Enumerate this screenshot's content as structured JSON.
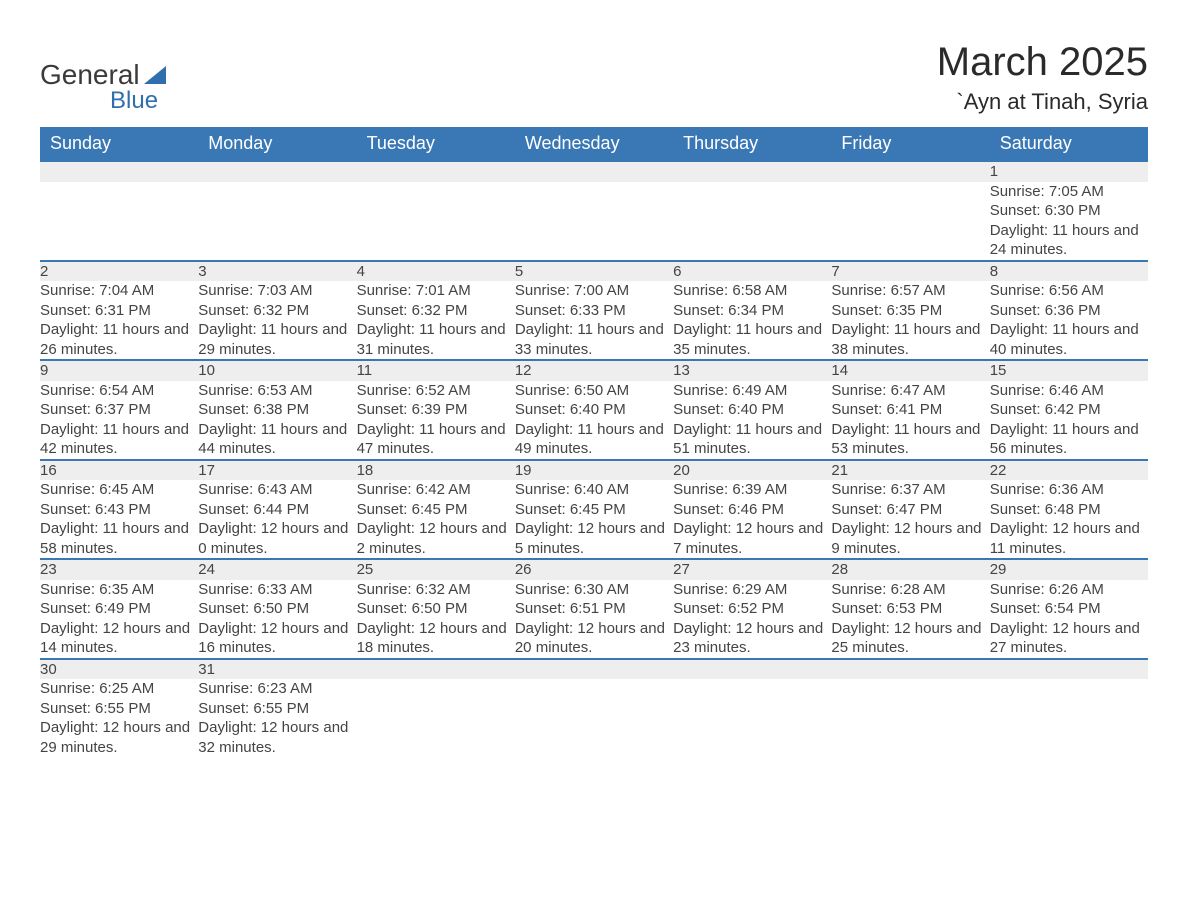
{
  "logo": {
    "text1": "General",
    "text2": "Blue"
  },
  "title": "March 2025",
  "location": "`Ayn at Tinah, Syria",
  "colors": {
    "header_bg": "#3a78b5",
    "header_text": "#ffffff",
    "daynum_bg": "#eeeeee",
    "border": "#3a78b5",
    "brand_blue": "#2f6fae"
  },
  "weekdays": [
    "Sunday",
    "Monday",
    "Tuesday",
    "Wednesday",
    "Thursday",
    "Friday",
    "Saturday"
  ],
  "weeks": [
    [
      null,
      null,
      null,
      null,
      null,
      null,
      {
        "d": "1",
        "sr": "7:05 AM",
        "ss": "6:30 PM",
        "dl": "11 hours and 24 minutes."
      }
    ],
    [
      {
        "d": "2",
        "sr": "7:04 AM",
        "ss": "6:31 PM",
        "dl": "11 hours and 26 minutes."
      },
      {
        "d": "3",
        "sr": "7:03 AM",
        "ss": "6:32 PM",
        "dl": "11 hours and 29 minutes."
      },
      {
        "d": "4",
        "sr": "7:01 AM",
        "ss": "6:32 PM",
        "dl": "11 hours and 31 minutes."
      },
      {
        "d": "5",
        "sr": "7:00 AM",
        "ss": "6:33 PM",
        "dl": "11 hours and 33 minutes."
      },
      {
        "d": "6",
        "sr": "6:58 AM",
        "ss": "6:34 PM",
        "dl": "11 hours and 35 minutes."
      },
      {
        "d": "7",
        "sr": "6:57 AM",
        "ss": "6:35 PM",
        "dl": "11 hours and 38 minutes."
      },
      {
        "d": "8",
        "sr": "6:56 AM",
        "ss": "6:36 PM",
        "dl": "11 hours and 40 minutes."
      }
    ],
    [
      {
        "d": "9",
        "sr": "6:54 AM",
        "ss": "6:37 PM",
        "dl": "11 hours and 42 minutes."
      },
      {
        "d": "10",
        "sr": "6:53 AM",
        "ss": "6:38 PM",
        "dl": "11 hours and 44 minutes."
      },
      {
        "d": "11",
        "sr": "6:52 AM",
        "ss": "6:39 PM",
        "dl": "11 hours and 47 minutes."
      },
      {
        "d": "12",
        "sr": "6:50 AM",
        "ss": "6:40 PM",
        "dl": "11 hours and 49 minutes."
      },
      {
        "d": "13",
        "sr": "6:49 AM",
        "ss": "6:40 PM",
        "dl": "11 hours and 51 minutes."
      },
      {
        "d": "14",
        "sr": "6:47 AM",
        "ss": "6:41 PM",
        "dl": "11 hours and 53 minutes."
      },
      {
        "d": "15",
        "sr": "6:46 AM",
        "ss": "6:42 PM",
        "dl": "11 hours and 56 minutes."
      }
    ],
    [
      {
        "d": "16",
        "sr": "6:45 AM",
        "ss": "6:43 PM",
        "dl": "11 hours and 58 minutes."
      },
      {
        "d": "17",
        "sr": "6:43 AM",
        "ss": "6:44 PM",
        "dl": "12 hours and 0 minutes."
      },
      {
        "d": "18",
        "sr": "6:42 AM",
        "ss": "6:45 PM",
        "dl": "12 hours and 2 minutes."
      },
      {
        "d": "19",
        "sr": "6:40 AM",
        "ss": "6:45 PM",
        "dl": "12 hours and 5 minutes."
      },
      {
        "d": "20",
        "sr": "6:39 AM",
        "ss": "6:46 PM",
        "dl": "12 hours and 7 minutes."
      },
      {
        "d": "21",
        "sr": "6:37 AM",
        "ss": "6:47 PM",
        "dl": "12 hours and 9 minutes."
      },
      {
        "d": "22",
        "sr": "6:36 AM",
        "ss": "6:48 PM",
        "dl": "12 hours and 11 minutes."
      }
    ],
    [
      {
        "d": "23",
        "sr": "6:35 AM",
        "ss": "6:49 PM",
        "dl": "12 hours and 14 minutes."
      },
      {
        "d": "24",
        "sr": "6:33 AM",
        "ss": "6:50 PM",
        "dl": "12 hours and 16 minutes."
      },
      {
        "d": "25",
        "sr": "6:32 AM",
        "ss": "6:50 PM",
        "dl": "12 hours and 18 minutes."
      },
      {
        "d": "26",
        "sr": "6:30 AM",
        "ss": "6:51 PM",
        "dl": "12 hours and 20 minutes."
      },
      {
        "d": "27",
        "sr": "6:29 AM",
        "ss": "6:52 PM",
        "dl": "12 hours and 23 minutes."
      },
      {
        "d": "28",
        "sr": "6:28 AM",
        "ss": "6:53 PM",
        "dl": "12 hours and 25 minutes."
      },
      {
        "d": "29",
        "sr": "6:26 AM",
        "ss": "6:54 PM",
        "dl": "12 hours and 27 minutes."
      }
    ],
    [
      {
        "d": "30",
        "sr": "6:25 AM",
        "ss": "6:55 PM",
        "dl": "12 hours and 29 minutes."
      },
      {
        "d": "31",
        "sr": "6:23 AM",
        "ss": "6:55 PM",
        "dl": "12 hours and 32 minutes."
      },
      null,
      null,
      null,
      null,
      null
    ]
  ],
  "labels": {
    "sunrise": "Sunrise: ",
    "sunset": "Sunset: ",
    "daylight": "Daylight: "
  }
}
